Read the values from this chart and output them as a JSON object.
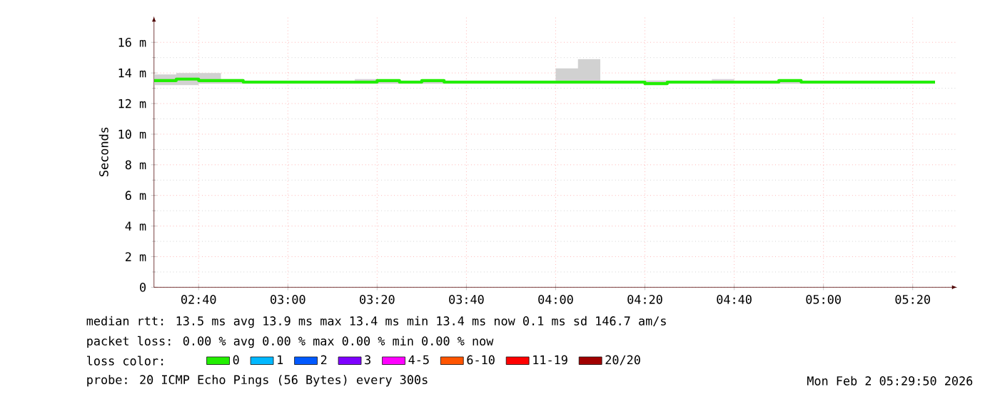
{
  "chart_data": {
    "type": "step",
    "ylabel": "Seconds",
    "legend_title": "loss color:",
    "x": [
      2.5,
      2.5833,
      2.6667,
      2.75,
      2.8333,
      2.9167,
      3,
      3.0833,
      3.1667,
      3.25,
      3.3333,
      3.4167,
      3.5,
      3.5833,
      3.6667,
      3.75,
      3.8333,
      3.9167,
      4,
      4.0833,
      4.1667,
      4.25,
      4.3333,
      4.4167,
      4.5,
      4.5833,
      4.6667,
      4.75,
      4.8333,
      4.9167,
      5,
      5.0833,
      5.1667,
      5.25,
      5.3333,
      5.4167
    ],
    "series": [
      {
        "name": "0",
        "color": "#22ee00",
        "values": [
          13.5,
          13.6,
          13.5,
          13.5,
          13.4,
          13.4,
          13.4,
          13.4,
          13.4,
          13.4,
          13.5,
          13.4,
          13.5,
          13.4,
          13.4,
          13.4,
          13.4,
          13.4,
          13.4,
          13.4,
          13.4,
          13.4,
          13.3,
          13.4,
          13.4,
          13.4,
          13.4,
          13.4,
          13.5,
          13.4,
          13.4,
          13.4,
          13.4,
          13.4,
          13.4,
          13.4
        ],
        "lower": [
          13.2,
          13.2,
          13.2,
          13.3,
          13.3,
          13.3,
          13.3,
          13.3,
          13.3,
          13.3,
          13.3,
          13.3,
          13.3,
          13.3,
          13.3,
          13.3,
          13.3,
          13.3,
          13.3,
          13.3,
          13.3,
          13.3,
          13.3,
          13.3,
          13.3,
          13.3,
          13.3,
          13.3,
          13.3,
          13.3,
          13.3,
          13.3,
          13.3,
          13.3,
          13.3,
          13.3
        ],
        "upper": [
          13.9,
          14.0,
          14.0,
          13.6,
          13.5,
          13.5,
          13.5,
          13.5,
          13.5,
          13.6,
          13.5,
          13.5,
          13.5,
          13.5,
          13.5,
          13.5,
          13.5,
          13.5,
          14.3,
          14.9,
          13.5,
          13.5,
          13.5,
          13.5,
          13.5,
          13.6,
          13.5,
          13.5,
          13.5,
          13.5,
          13.5,
          13.5,
          13.5,
          13.5,
          13.5,
          13.5
        ]
      },
      {
        "name": "1",
        "color": "#00b8ff",
        "values": [
          null,
          null,
          null,
          null,
          null,
          null,
          null,
          null,
          null,
          null,
          null,
          null,
          null,
          null,
          null,
          null,
          null,
          null,
          null,
          null,
          null,
          null,
          null,
          null,
          null,
          null,
          null,
          null,
          null,
          null,
          null,
          null,
          null,
          null,
          null,
          null
        ]
      },
      {
        "name": "2",
        "color": "#0059ff",
        "values": [
          null,
          null,
          null,
          null,
          null,
          null,
          null,
          null,
          null,
          null,
          null,
          null,
          null,
          null,
          null,
          null,
          null,
          null,
          null,
          null,
          null,
          null,
          null,
          null,
          null,
          null,
          null,
          null,
          null,
          null,
          null,
          null,
          null,
          null,
          null,
          null
        ]
      },
      {
        "name": "3",
        "color": "#7e00ff",
        "values": [
          null,
          null,
          null,
          null,
          null,
          null,
          null,
          null,
          null,
          null,
          null,
          null,
          null,
          null,
          null,
          null,
          null,
          null,
          null,
          null,
          null,
          null,
          null,
          null,
          null,
          null,
          null,
          null,
          null,
          null,
          null,
          null,
          null,
          null,
          null,
          null
        ]
      },
      {
        "name": "4-5",
        "color": "#ff00ff",
        "values": [
          null,
          null,
          null,
          null,
          null,
          null,
          null,
          null,
          null,
          null,
          null,
          null,
          null,
          null,
          null,
          null,
          null,
          null,
          null,
          null,
          null,
          null,
          null,
          null,
          null,
          null,
          null,
          null,
          null,
          null,
          null,
          null,
          null,
          null,
          null,
          null
        ]
      },
      {
        "name": "6-10",
        "color": "#ff5500",
        "values": [
          null,
          null,
          null,
          null,
          null,
          null,
          null,
          null,
          null,
          null,
          null,
          null,
          null,
          null,
          null,
          null,
          null,
          null,
          null,
          null,
          null,
          null,
          null,
          null,
          null,
          null,
          null,
          null,
          null,
          null,
          null,
          null,
          null,
          null,
          null,
          null
        ]
      },
      {
        "name": "11-19",
        "color": "#ff0000",
        "values": [
          null,
          null,
          null,
          null,
          null,
          null,
          null,
          null,
          null,
          null,
          null,
          null,
          null,
          null,
          null,
          null,
          null,
          null,
          null,
          null,
          null,
          null,
          null,
          null,
          null,
          null,
          null,
          null,
          null,
          null,
          null,
          null,
          null,
          null,
          null,
          null
        ]
      },
      {
        "name": "20/20",
        "color": "#a10000",
        "values": [
          null,
          null,
          null,
          null,
          null,
          null,
          null,
          null,
          null,
          null,
          null,
          null,
          null,
          null,
          null,
          null,
          null,
          null,
          null,
          null,
          null,
          null,
          null,
          null,
          null,
          null,
          null,
          null,
          null,
          null,
          null,
          null,
          null,
          null,
          null,
          null
        ]
      }
    ],
    "xlim": [
      2.5,
      5.5
    ],
    "xticks": [
      {
        "value": 2.6667,
        "label": "02:40"
      },
      {
        "value": 3,
        "label": "03:00"
      },
      {
        "value": 3.3333,
        "label": "03:20"
      },
      {
        "value": 3.6667,
        "label": "03:40"
      },
      {
        "value": 4,
        "label": "04:00"
      },
      {
        "value": 4.3333,
        "label": "04:20"
      },
      {
        "value": 4.6667,
        "label": "04:40"
      },
      {
        "value": 5,
        "label": "05:00"
      },
      {
        "value": 5.3333,
        "label": "05:20"
      }
    ],
    "ylim": [
      0,
      17.7
    ],
    "yticks": [
      0,
      {
        "value": 2,
        "label": "2 m"
      },
      {
        "value": 4,
        "label": "4 m"
      },
      {
        "value": 6,
        "label": "6 m"
      },
      {
        "value": 8,
        "label": "8 m"
      },
      {
        "value": 10,
        "label": "10 m"
      },
      {
        "value": 12,
        "label": "12 m"
      },
      {
        "value": 14,
        "label": "14 m"
      },
      {
        "value": 16,
        "label": "16 m"
      }
    ],
    "grid": true,
    "legend": "bottom",
    "annotations": [
      "median rtt:  13.5 ms avg  13.9 ms max  13.4 ms min  13.4 ms now  0.1 ms sd  146.7  am/s",
      "packet loss: 0.00 % avg  0.00 % max  0.00 % min  0.00 % now",
      "probe:       20 ICMP Echo Pings (56 Bytes) every 300s",
      "Mon Feb  2 05:29:50 2026"
    ]
  }
}
